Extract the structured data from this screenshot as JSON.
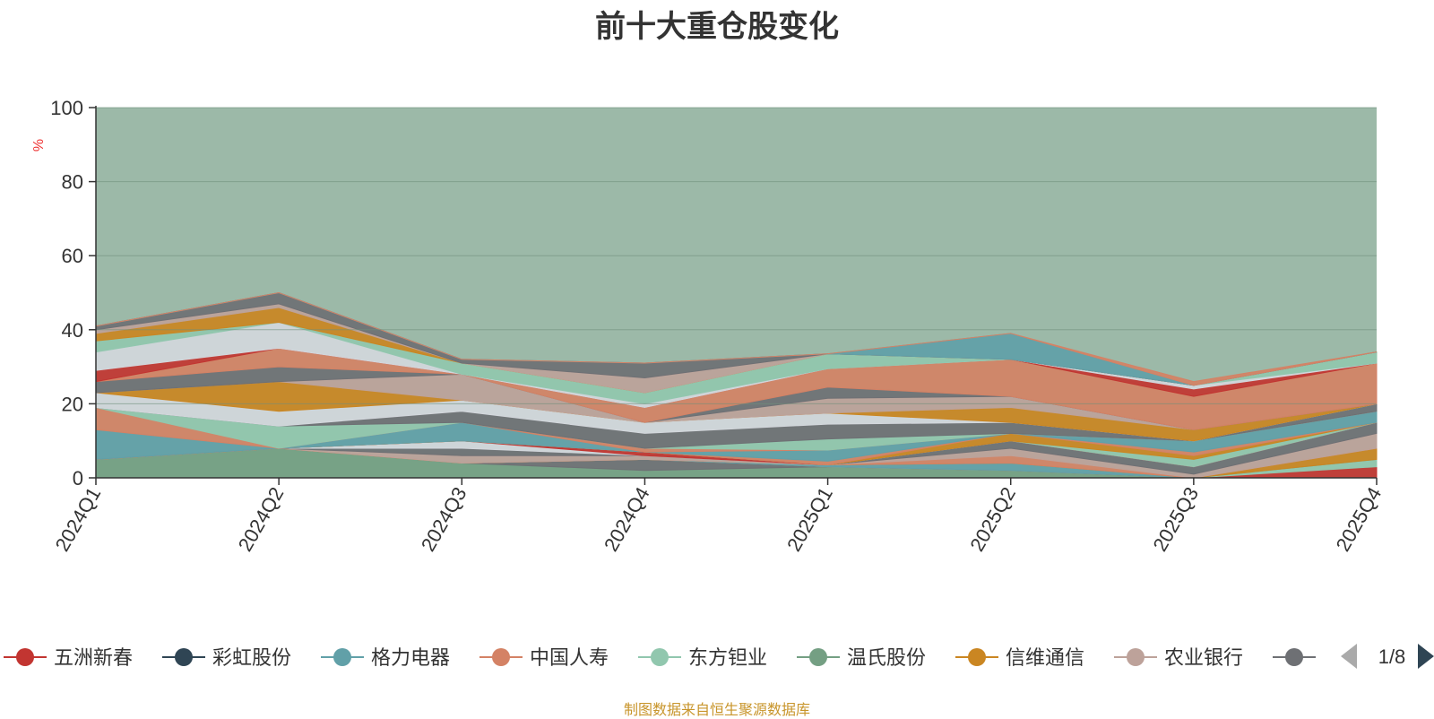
{
  "title": "前十大重仓股变化",
  "footer": "制图数据来自恒生聚源数据库",
  "legend_page": "1/8",
  "colors": {
    "background_area": "#9cb9a8",
    "ylabel": "#ee3333",
    "axis": "#333333",
    "text": "#333333"
  },
  "chart_data": {
    "type": "area",
    "stacked": true,
    "ylabel": "%",
    "ylim": [
      0,
      100
    ],
    "yticks": [
      0,
      20,
      40,
      60,
      80,
      100
    ],
    "categories": [
      "2024Q1",
      "2024Q2",
      "2024Q3",
      "2024Q4",
      "2025Q1",
      "2025Q2",
      "2025Q3",
      "2025Q4"
    ],
    "grid": true,
    "legend": "bottom",
    "legend_visible": [
      {
        "name": "五洲新春",
        "color": "#c23531"
      },
      {
        "name": "彩虹股份",
        "color": "#2f4554"
      },
      {
        "name": "格力电器",
        "color": "#61a0a8"
      },
      {
        "name": "中国人寿",
        "color": "#d48265"
      },
      {
        "name": "东方钽业",
        "color": "#91c7ae"
      },
      {
        "name": "温氏股份",
        "color": "#749f83"
      },
      {
        "name": "信维通信",
        "color": "#ca8622"
      },
      {
        "name": "农业银行",
        "color": "#bda29a"
      },
      {
        "name": "",
        "color": "#6e7074"
      }
    ],
    "series": [
      {
        "color": "#749f83",
        "values": [
          5,
          8,
          4,
          2,
          3,
          2,
          0,
          0
        ]
      },
      {
        "color": "#6e7074",
        "values": [
          0,
          0,
          0,
          3,
          0,
          0,
          0,
          0
        ]
      },
      {
        "color": "#c23531",
        "values": [
          0,
          0,
          0,
          0,
          0,
          0,
          0,
          3
        ]
      },
      {
        "color": "#91c7ae",
        "values": [
          0,
          0,
          0,
          0,
          0,
          0,
          0,
          2
        ]
      },
      {
        "color": "#61a0a8",
        "values": [
          0,
          0,
          0,
          0,
          0.5,
          2,
          0,
          0
        ]
      },
      {
        "color": "#ca8622",
        "values": [
          0,
          0,
          0,
          0,
          0,
          0,
          0,
          3
        ]
      },
      {
        "color": "#d48265",
        "values": [
          0,
          0,
          0,
          0,
          0,
          2,
          0,
          0
        ]
      },
      {
        "color": "#bda29a",
        "values": [
          0,
          0,
          2,
          1,
          0,
          2,
          1,
          4
        ]
      },
      {
        "color": "#6e7074",
        "values": [
          0,
          0,
          2,
          0,
          0,
          2,
          2,
          3
        ]
      },
      {
        "color": "#d3d7dc",
        "values": [
          0,
          0,
          2,
          0,
          0,
          0,
          0,
          0
        ]
      },
      {
        "color": "#c23531",
        "values": [
          0,
          0,
          0,
          1,
          0,
          0,
          0,
          0
        ]
      },
      {
        "color": "#91c7ae",
        "values": [
          0,
          0,
          0,
          0,
          0,
          0,
          2,
          0
        ]
      },
      {
        "color": "#ca8622",
        "values": [
          0,
          0,
          0,
          0,
          0,
          2,
          1,
          0
        ]
      },
      {
        "color": "#d48265",
        "values": [
          0,
          0,
          0,
          0,
          1,
          0,
          1,
          0
        ]
      },
      {
        "color": "#61a0a8",
        "values": [
          8,
          0,
          5,
          0,
          3,
          0,
          3,
          3
        ]
      },
      {
        "color": "#d48265",
        "values": [
          6,
          0,
          0,
          1,
          0,
          0,
          0,
          0
        ]
      },
      {
        "color": "#91c7ae",
        "values": [
          0,
          6,
          0,
          0,
          3,
          0,
          0,
          0
        ]
      },
      {
        "color": "#6e7074",
        "values": [
          0,
          0,
          3,
          4,
          4,
          3,
          0,
          2
        ]
      },
      {
        "color": "#d3d7dc",
        "values": [
          4,
          4,
          3,
          3,
          3,
          0,
          0,
          0
        ]
      },
      {
        "color": "#ca8622",
        "values": [
          0,
          8,
          0,
          0,
          0,
          4,
          3,
          0
        ]
      },
      {
        "color": "#bda29a",
        "values": [
          0,
          0,
          7,
          0,
          4,
          3,
          0,
          0
        ]
      },
      {
        "color": "#6e7074",
        "values": [
          3,
          4,
          0,
          0,
          3,
          0,
          0,
          0
        ]
      },
      {
        "color": "#d48265",
        "values": [
          0,
          5,
          0,
          4,
          5,
          10,
          9,
          11
        ]
      },
      {
        "color": "#c23531",
        "values": [
          3,
          0,
          0,
          0,
          0,
          0,
          2,
          0
        ]
      },
      {
        "color": "#d3d7dc",
        "values": [
          5,
          7,
          0,
          1,
          0,
          0,
          1,
          0
        ]
      },
      {
        "color": "#91c7ae",
        "values": [
          3,
          0,
          3,
          3,
          4,
          0,
          0,
          3
        ]
      },
      {
        "color": "#ca8622",
        "values": [
          2,
          4,
          0,
          0,
          0,
          0,
          0,
          0
        ]
      },
      {
        "color": "#bda29a",
        "values": [
          1,
          1,
          0,
          4,
          0,
          0,
          0,
          0
        ]
      },
      {
        "color": "#6e7074",
        "values": [
          1,
          3,
          1,
          4,
          0,
          0,
          0,
          0
        ]
      },
      {
        "color": "#61a0a8",
        "values": [
          0,
          0,
          0,
          0,
          0,
          7,
          0,
          0
        ]
      },
      {
        "color": "#d48265",
        "values": [
          0,
          0,
          0,
          0,
          0,
          0,
          1,
          0
        ]
      }
    ]
  }
}
